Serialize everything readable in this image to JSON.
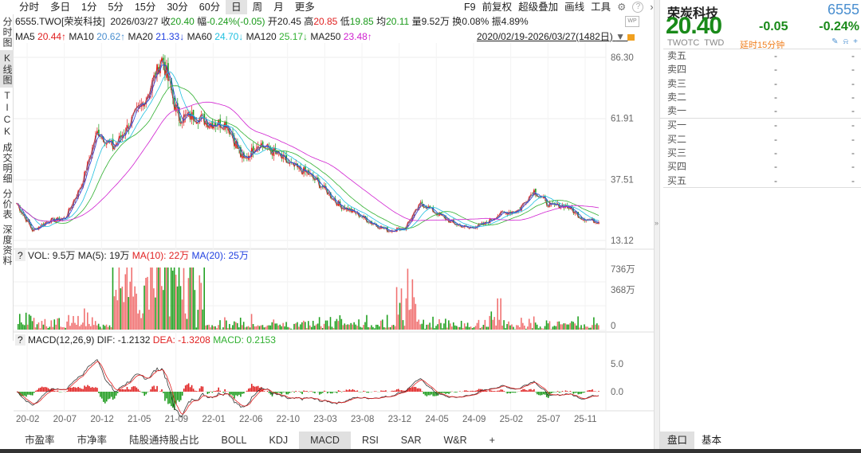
{
  "period_tabs": [
    "分时",
    "多日",
    "1分",
    "5分",
    "15分",
    "30分",
    "60分",
    "日",
    "周",
    "月",
    "更多"
  ],
  "active_period": "日",
  "toolbar": {
    "f9": "F9",
    "fq": "前复权",
    "overlay": "超级叠加",
    "draw": "画线",
    "tools": "工具",
    "settings_icon": "gear-icon",
    "help_icon": "question-icon",
    "more_icon": "chevron-right-icon"
  },
  "left_tabs": [
    "分时图",
    "K线图",
    "TICK",
    "成交明细",
    "分价表",
    "深度资料"
  ],
  "active_left_tab": "K线图",
  "info": {
    "code": "6555.TWO[荣炭科技]",
    "date": "2026/03/27",
    "close_label": "收",
    "close": "20.40",
    "chg_label": "幅",
    "chg": "-0.24%(-0.05)",
    "open_label": "开",
    "open": "20.45",
    "high_label": "高",
    "high": "20.85",
    "low_label": "低",
    "low": "19.85",
    "avg_label": "均",
    "avg": "20.11",
    "vol_label": "量",
    "vol": "9.52万",
    "turn_label": "换",
    "turn": "0.08%",
    "amp_label": "振",
    "amp": "4.89%",
    "range": "2020/02/19-2026/03/27(1482日)"
  },
  "ma": [
    {
      "name": "MA5",
      "value": "20.44↑",
      "color": "#e02020"
    },
    {
      "name": "MA10",
      "value": "20.62↑",
      "color": "#4a8fd0"
    },
    {
      "name": "MA20",
      "value": "21.33↓",
      "color": "#2040e0"
    },
    {
      "name": "MA60",
      "value": "24.70↓",
      "color": "#20c0e0"
    },
    {
      "name": "MA120",
      "value": "25.17↓",
      "color": "#30b030"
    },
    {
      "name": "MA250",
      "value": "23.48↑",
      "color": "#d020d0"
    }
  ],
  "vol_header": {
    "q": "?",
    "vol": "VOL: 9.5万",
    "ma5": "MA(5): 19万",
    "ma10": "MA(10): 22万",
    "ma20": "MA(20): 25万"
  },
  "macd_header": {
    "q": "?",
    "name": "MACD(12,26,9)",
    "dif": "DIF: -1.2132",
    "dea": "DEA: -1.3208",
    "macd": "MACD: 0.2153"
  },
  "bottom_tabs": [
    "市盈率",
    "市净率",
    "陆股通持股占比",
    "BOLL",
    "KDJ",
    "MACD",
    "RSI",
    "SAR",
    "W&R",
    "+"
  ],
  "active_bottom_tab": "MACD",
  "quote": {
    "name": "荣炭科技",
    "code": "6555",
    "price": "20.40",
    "change": "-0.05",
    "pct": "-0.24%",
    "market": "TWOTC",
    "currency": "TWD",
    "delay": "延时15分钟"
  },
  "orderbook": [
    {
      "label": "卖五",
      "price": "-",
      "vol": "-"
    },
    {
      "label": "卖四",
      "price": "-",
      "vol": "-"
    },
    {
      "label": "卖三",
      "price": "-",
      "vol": "-"
    },
    {
      "label": "卖二",
      "price": "-",
      "vol": "-"
    },
    {
      "label": "卖一",
      "price": "-",
      "vol": "-"
    },
    {
      "label": "买一",
      "price": "-",
      "vol": "-"
    },
    {
      "label": "买二",
      "price": "-",
      "vol": "-"
    },
    {
      "label": "买三",
      "price": "-",
      "vol": "-"
    },
    {
      "label": "买四",
      "price": "-",
      "vol": "-"
    },
    {
      "label": "买五",
      "price": "-",
      "vol": "-"
    }
  ],
  "right_tabs": [
    "盘口",
    "基本"
  ],
  "active_right_tab": "盘口",
  "colors": {
    "up": "#e02020",
    "down": "#1a9a1a",
    "accent": "#4a8fd0"
  },
  "chart_data": [
    {
      "type": "candlestick",
      "price_ticks": [
        "86.30",
        "61.91",
        "37.51",
        "13.12"
      ],
      "ylim": [
        13.12,
        86.3
      ],
      "x_ticks": [
        "20-02",
        "20-07",
        "20-12",
        "21-05",
        "21-09",
        "22-01",
        "22-06",
        "22-10",
        "23-03",
        "23-08",
        "23-12",
        "24-05",
        "24-09",
        "25-02",
        "25-07",
        "25-11"
      ],
      "close_path": [
        [
          "20-02",
          28
        ],
        [
          "20-03",
          17
        ],
        [
          "20-07",
          21
        ],
        [
          "20-11",
          22
        ],
        [
          "20-12",
          35
        ],
        [
          "21-01",
          57
        ],
        [
          "21-02",
          50
        ],
        [
          "21-04",
          60
        ],
        [
          "21-05",
          70
        ],
        [
          "21-06",
          86
        ],
        [
          "21-07",
          62
        ],
        [
          "21-09",
          63
        ],
        [
          "21-11",
          60
        ],
        [
          "22-01",
          60
        ],
        [
          "22-03",
          45
        ],
        [
          "22-05",
          52
        ],
        [
          "22-08",
          48
        ],
        [
          "22-10",
          43
        ],
        [
          "23-01",
          40
        ],
        [
          "23-04",
          34
        ],
        [
          "23-07",
          27
        ],
        [
          "23-10",
          24
        ],
        [
          "24-01",
          20
        ],
        [
          "24-04",
          17
        ],
        [
          "24-05",
          18
        ],
        [
          "24-06",
          28
        ],
        [
          "24-08",
          24
        ],
        [
          "24-11",
          20
        ],
        [
          "25-01",
          18
        ],
        [
          "25-03",
          20
        ],
        [
          "25-05",
          24
        ],
        [
          "25-07",
          25
        ],
        [
          "25-08",
          33
        ],
        [
          "25-10",
          27
        ],
        [
          "26-01",
          27
        ],
        [
          "26-03",
          22
        ],
        [
          "26-03-27",
          20.4
        ]
      ]
    },
    {
      "type": "bar",
      "name": "VOL",
      "y_ticks": [
        "736万",
        "368万",
        "0"
      ],
      "ylim": [
        0,
        736
      ]
    },
    {
      "type": "macd",
      "y_ticks": [
        "5.0",
        "0.0"
      ]
    }
  ]
}
